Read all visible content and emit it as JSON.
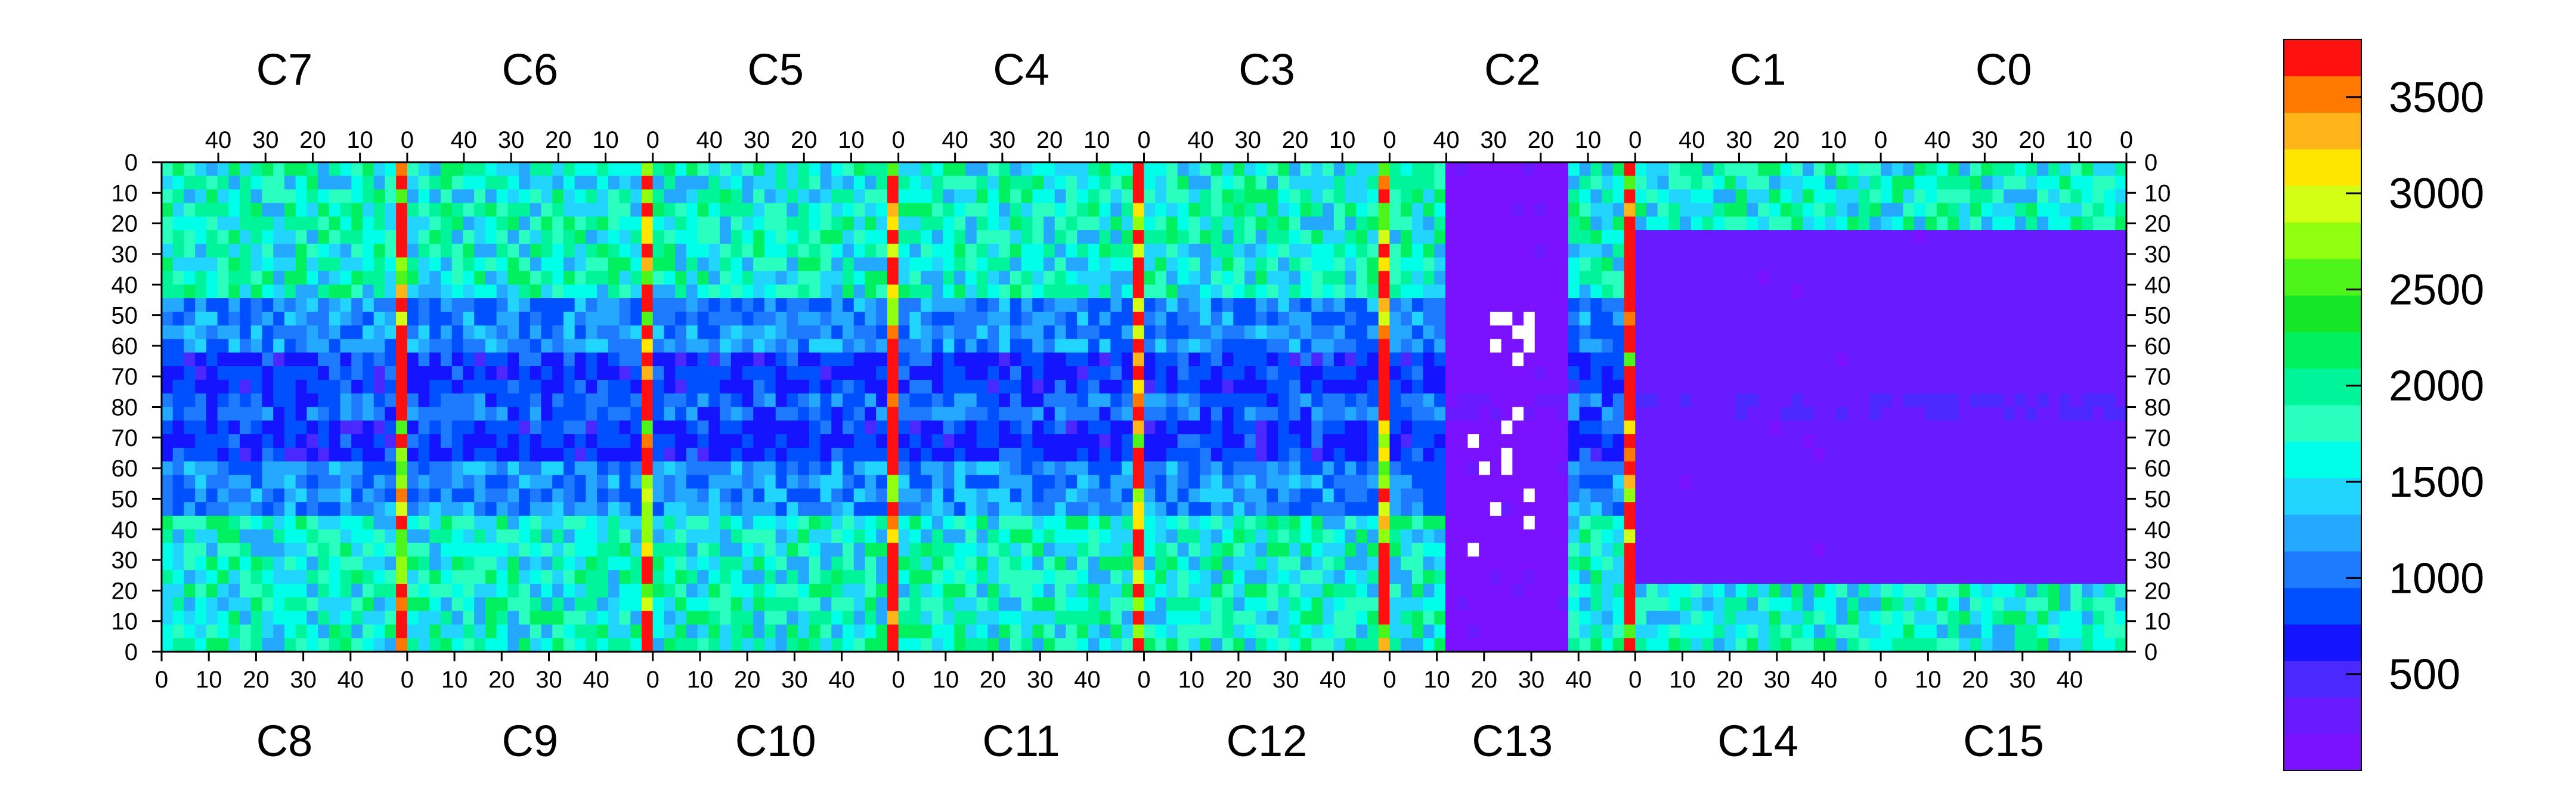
{
  "chart_data": {
    "type": "heatmap",
    "title": "",
    "xlabel": "",
    "ylabel": "",
    "top_chip_labels": [
      "C7",
      "C6",
      "C5",
      "C4",
      "C3",
      "C2",
      "C1",
      "C0"
    ],
    "bottom_chip_labels": [
      "C8",
      "C9",
      "C10",
      "C11",
      "C12",
      "C13",
      "C14",
      "C15"
    ],
    "top_x_ticks": [
      "40",
      "30",
      "20",
      "10",
      "0"
    ],
    "bottom_x_ticks": [
      "0",
      "10",
      "20",
      "30",
      "40"
    ],
    "y_ticks": [
      "0",
      "10",
      "20",
      "30",
      "40",
      "50",
      "60",
      "70",
      "80",
      "70",
      "60",
      "50",
      "40",
      "30",
      "20",
      "10",
      "0"
    ],
    "columns_per_chip": 52,
    "rows_per_half": 80,
    "z_range": [
      0,
      3800
    ],
    "colorbar_ticks": [
      500,
      1000,
      1500,
      2000,
      2500,
      3000,
      3500
    ],
    "colorbar_tick_labels": [
      "500",
      "1000",
      "1500",
      "2000",
      "2500",
      "3000",
      "3500"
    ],
    "colorbar_colors": [
      "#7a12ff",
      "#6a1aff",
      "#4a28ff",
      "#1414ff",
      "#0050ff",
      "#1e7aff",
      "#25a8ff",
      "#22d5ff",
      "#00ffe8",
      "#2affbf",
      "#00f59a",
      "#00f060",
      "#16e628",
      "#4ef51a",
      "#90ff10",
      "#d2ff14",
      "#ffe600",
      "#ffb41a",
      "#ff7800",
      "#ff1010"
    ],
    "column_profile_description_values": {
      "bright_edge_columns": 3600,
      "dense_region": 1700,
      "sparse_region": 1100,
      "dead_region": 150
    }
  }
}
